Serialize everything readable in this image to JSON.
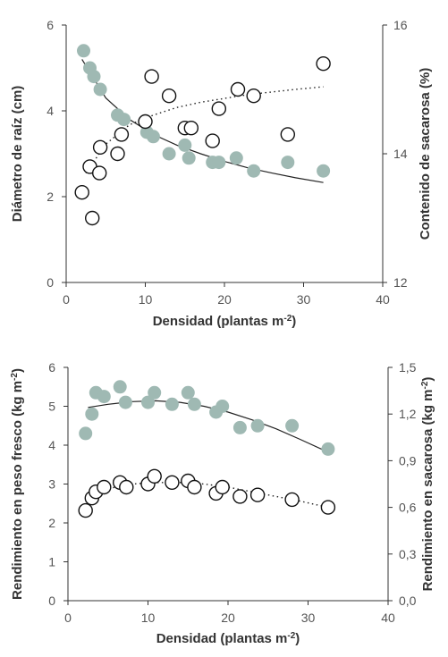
{
  "chart_data": [
    {
      "type": "scatter",
      "xlabel": "Densidad (plantas m",
      "xlabel_sup": "-2",
      "xlabel_end": ")",
      "ylabel": "Diámetro de raíz (cm)",
      "y2label": "Contenido de sacarosa (%)",
      "xlim": [
        0,
        40
      ],
      "ylim": [
        0,
        6
      ],
      "y2lim": [
        12,
        16
      ],
      "x_ticks": [
        "0",
        "10",
        "20",
        "30",
        "40"
      ],
      "y_ticks": [
        "0",
        "2",
        "4",
        "6"
      ],
      "y2_ticks": [
        "12",
        "14",
        "16"
      ],
      "series": [
        {
          "axis": "left",
          "marker": "filled",
          "color": "#9fb9b3",
          "points": [
            [
              2.2,
              5.4
            ],
            [
              3,
              5.0
            ],
            [
              3.5,
              4.8
            ],
            [
              4.3,
              4.5
            ],
            [
              6.5,
              3.9
            ],
            [
              7.3,
              3.8
            ],
            [
              10.2,
              3.5
            ],
            [
              11,
              3.4
            ],
            [
              13,
              3.0
            ],
            [
              15,
              3.2
            ],
            [
              15.5,
              2.9
            ],
            [
              18.5,
              2.8
            ],
            [
              19.3,
              2.8
            ],
            [
              21.5,
              2.9
            ],
            [
              23.7,
              2.6
            ],
            [
              28,
              2.8
            ],
            [
              32.5,
              2.6
            ]
          ],
          "fit": {
            "style": "solid",
            "x": [
              2,
              5,
              8,
              11,
              14,
              17,
              20,
              23,
              26,
              29,
              32.5
            ],
            "y": [
              5.2,
              4.3,
              3.8,
              3.45,
              3.2,
              3.0,
              2.82,
              2.67,
              2.55,
              2.44,
              2.33
            ]
          }
        },
        {
          "axis": "right",
          "marker": "open",
          "points": [
            [
              2,
              13.4
            ],
            [
              3,
              13.8
            ],
            [
              3.3,
              13.0
            ],
            [
              4.2,
              13.7
            ],
            [
              4.3,
              14.1
            ],
            [
              6.5,
              14.0
            ],
            [
              7,
              14.3
            ],
            [
              10,
              14.5
            ],
            [
              10.8,
              15.2
            ],
            [
              13,
              14.9
            ],
            [
              15,
              14.4
            ],
            [
              15.8,
              14.4
            ],
            [
              18.5,
              14.2
            ],
            [
              19.3,
              14.7
            ],
            [
              21.7,
              15.0
            ],
            [
              23.7,
              14.9
            ],
            [
              28,
              14.3
            ],
            [
              32.5,
              15.4
            ]
          ],
          "fit": {
            "style": "dotted",
            "x": [
              2.5,
              5,
              8,
              11,
              14,
              17,
              20,
              23,
              26,
              29,
              32.5
            ],
            "y": [
              13.7,
              14.15,
              14.45,
              14.6,
              14.72,
              14.8,
              14.86,
              14.92,
              14.96,
              15.0,
              15.04
            ]
          }
        }
      ]
    },
    {
      "type": "scatter",
      "xlabel": "Densidad (plantas m",
      "xlabel_sup": "-2",
      "xlabel_end": ")",
      "ylabel": "Rendimiento en peso fresco (kg m",
      "ylabel_sup": "-2",
      "ylabel_end": ")",
      "y2label": "Rendimiento en sacarosa (kg m",
      "y2label_sup": "-2",
      "y2label_end": ")",
      "xlim": [
        0,
        40
      ],
      "ylim": [
        0,
        6
      ],
      "y2lim": [
        0,
        1.5
      ],
      "x_ticks": [
        "0",
        "10",
        "20",
        "30",
        "40"
      ],
      "y_ticks": [
        "0",
        "1",
        "2",
        "3",
        "4",
        "5",
        "6"
      ],
      "y2_ticks": [
        "0,0",
        "0,3",
        "0,6",
        "0,9",
        "1,2",
        "1,5"
      ],
      "series": [
        {
          "axis": "left",
          "marker": "filled",
          "color": "#9fb9b3",
          "points": [
            [
              2.2,
              4.3
            ],
            [
              3,
              4.8
            ],
            [
              3.5,
              5.35
            ],
            [
              4.5,
              5.25
            ],
            [
              6.5,
              5.5
            ],
            [
              7.2,
              5.1
            ],
            [
              10,
              5.1
            ],
            [
              10.8,
              5.35
            ],
            [
              13,
              5.05
            ],
            [
              15,
              5.35
            ],
            [
              15.8,
              5.05
            ],
            [
              18.5,
              4.85
            ],
            [
              19.3,
              5.0
            ],
            [
              21.5,
              4.45
            ],
            [
              23.7,
              4.5
            ],
            [
              28,
              4.5
            ],
            [
              32.5,
              3.9
            ]
          ],
          "fit": {
            "style": "solid",
            "x": [
              2.5,
              5,
              8,
              11,
              14,
              17,
              20,
              23,
              26,
              29,
              32.5
            ],
            "y": [
              4.97,
              5.05,
              5.12,
              5.14,
              5.1,
              5.0,
              4.85,
              4.65,
              4.42,
              4.15,
              3.82
            ]
          }
        },
        {
          "axis": "right",
          "marker": "open",
          "points": [
            [
              2.2,
              0.58
            ],
            [
              3,
              0.66
            ],
            [
              3.5,
              0.7
            ],
            [
              4.5,
              0.73
            ],
            [
              6.5,
              0.76
            ],
            [
              7.3,
              0.73
            ],
            [
              10,
              0.75
            ],
            [
              10.8,
              0.8
            ],
            [
              13,
              0.76
            ],
            [
              15,
              0.77
            ],
            [
              15.8,
              0.73
            ],
            [
              18.5,
              0.69
            ],
            [
              19.3,
              0.73
            ],
            [
              21.5,
              0.67
            ],
            [
              23.7,
              0.68
            ],
            [
              28,
              0.65
            ],
            [
              32.5,
              0.6
            ]
          ],
          "fit": {
            "style": "dotted",
            "x": [
              3,
              5,
              8,
              11,
              14,
              17,
              20,
              23,
              26,
              29,
              32.5
            ],
            "y": [
              0.68,
              0.72,
              0.75,
              0.76,
              0.76,
              0.75,
              0.73,
              0.7,
              0.67,
              0.64,
              0.6
            ]
          }
        }
      ]
    }
  ]
}
